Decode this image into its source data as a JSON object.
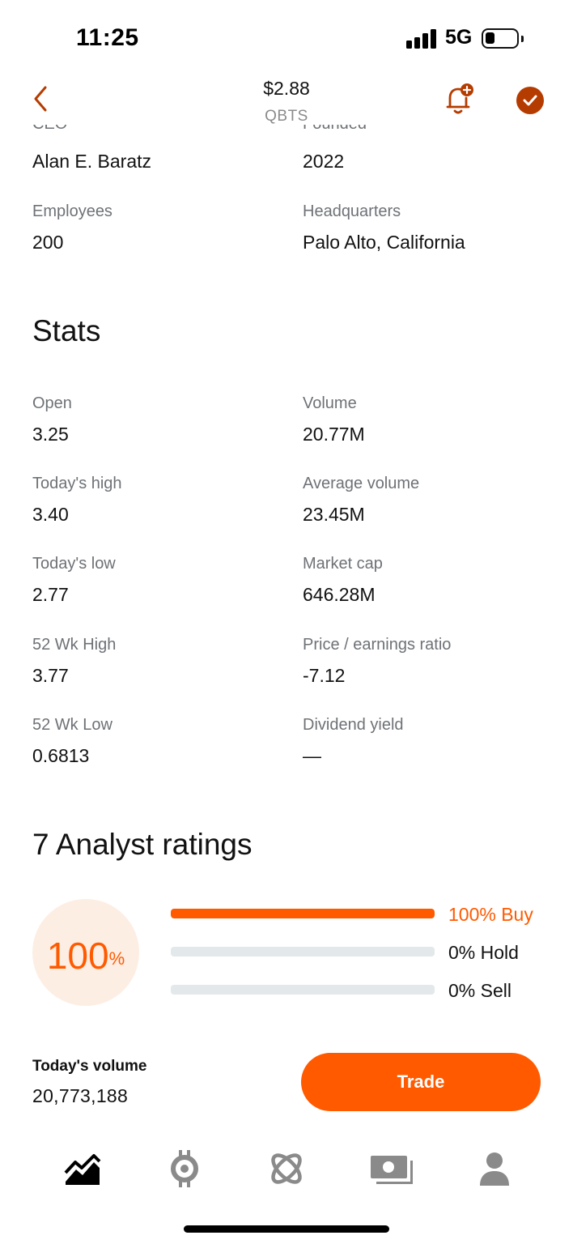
{
  "status_bar": {
    "time": "11:25",
    "network": "5G"
  },
  "header": {
    "price": "$2.88",
    "ticker": "QBTS"
  },
  "about": {
    "ceo_label": "CEO",
    "ceo": "Alan E. Baratz",
    "founded_label": "Founded",
    "founded": "2022",
    "employees_label": "Employees",
    "employees": "200",
    "hq_label": "Headquarters",
    "hq": "Palo Alto, California"
  },
  "stats": {
    "title": "Stats",
    "items": [
      {
        "label": "Open",
        "value": "3.25"
      },
      {
        "label": "Volume",
        "value": "20.77M"
      },
      {
        "label": "Today's high",
        "value": "3.40"
      },
      {
        "label": "Average volume",
        "value": "23.45M"
      },
      {
        "label": "Today's low",
        "value": "2.77"
      },
      {
        "label": "Market cap",
        "value": "646.28M"
      },
      {
        "label": "52 Wk High",
        "value": "3.77"
      },
      {
        "label": "Price / earnings ratio",
        "value": "-7.12"
      },
      {
        "label": "52 Wk Low",
        "value": "0.6813"
      },
      {
        "label": "Dividend yield",
        "value": "—"
      }
    ]
  },
  "analyst": {
    "title": "7 Analyst ratings",
    "summary_value": "100",
    "summary_unit": "%",
    "ratings": [
      {
        "label": "100% Buy",
        "fraction": 1.0
      },
      {
        "label": "0% Hold",
        "fraction": 0.0
      },
      {
        "label": "0% Sell",
        "fraction": 0.0
      }
    ]
  },
  "footer": {
    "volume_title": "Today's volume",
    "volume_value": "20,773,188",
    "trade_label": "Trade"
  },
  "tabs": [
    {
      "name": "investing-icon"
    },
    {
      "name": "crypto-icon"
    },
    {
      "name": "discover-icon"
    },
    {
      "name": "cash-icon"
    },
    {
      "name": "account-icon"
    }
  ],
  "colors": {
    "accent": "#ff5a00",
    "accent_dark": "#b53c00",
    "label_gray": "#6e7276",
    "track_gray": "#e3e8ea",
    "donut_bg": "#fdeee4"
  }
}
